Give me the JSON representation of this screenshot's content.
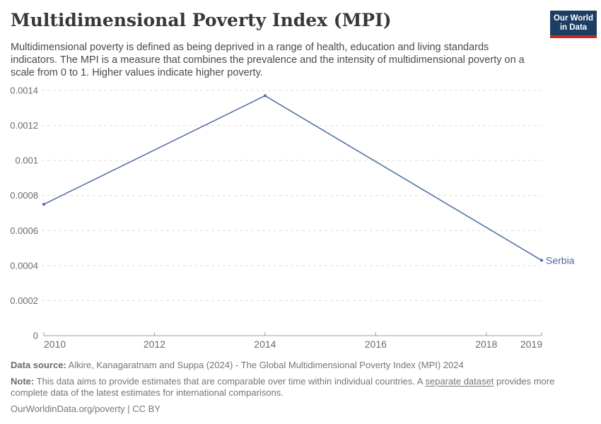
{
  "header": {
    "title": "Multidimensional Poverty Index (MPI)",
    "subtitle": "Multidimensional poverty is defined as being deprived in a range of health, education and living standards indicators. The MPI is a measure that combines the prevalence and the intensity of multidimensional poverty on a scale from 0 to 1. Higher values indicate higher poverty.",
    "logo": {
      "line1": "Our World",
      "line2": "in Data",
      "bg_color": "#1d3d63",
      "accent_color": "#cb2b1f"
    }
  },
  "chart_data": {
    "type": "line",
    "title": "Multidimensional Poverty Index (MPI)",
    "series": [
      {
        "name": "Serbia",
        "color": "#4c6a9c",
        "x": [
          2010,
          2014,
          2019
        ],
        "values": [
          0.00075,
          0.00137,
          0.00043
        ]
      }
    ],
    "end_label": "Serbia",
    "x_ticks": [
      2010,
      2012,
      2014,
      2016,
      2018,
      2019
    ],
    "y_ticks": [
      0,
      0.0002,
      0.0004,
      0.0006,
      0.0008,
      0.001,
      0.0012,
      0.0014
    ],
    "xlim": [
      2010,
      2019
    ],
    "ylim": [
      0,
      0.0014
    ],
    "xlabel": "",
    "ylabel": "",
    "grid": "horizontal-dashed",
    "legend_position": "end-of-line-label",
    "colors": {
      "line": "#4c6a9c",
      "grid": "#dddddd",
      "axis": "#9e9e9e",
      "tick_text": "#6b6b6b"
    }
  },
  "footer": {
    "datasource_label": "Data source:",
    "datasource_text": "Alkire, Kanagaratnam and Suppa (2024) - The Global Multidimensional Poverty Index (MPI) 2024",
    "note_label": "Note:",
    "note_text_before_link": "This data aims to provide estimates that are comparable over time within individual countries. A ",
    "note_link": "separate dataset",
    "note_text_after_link": " provides more complete data of the latest estimates for international comparisons.",
    "license_text": "OurWorldinData.org/poverty | CC BY"
  }
}
